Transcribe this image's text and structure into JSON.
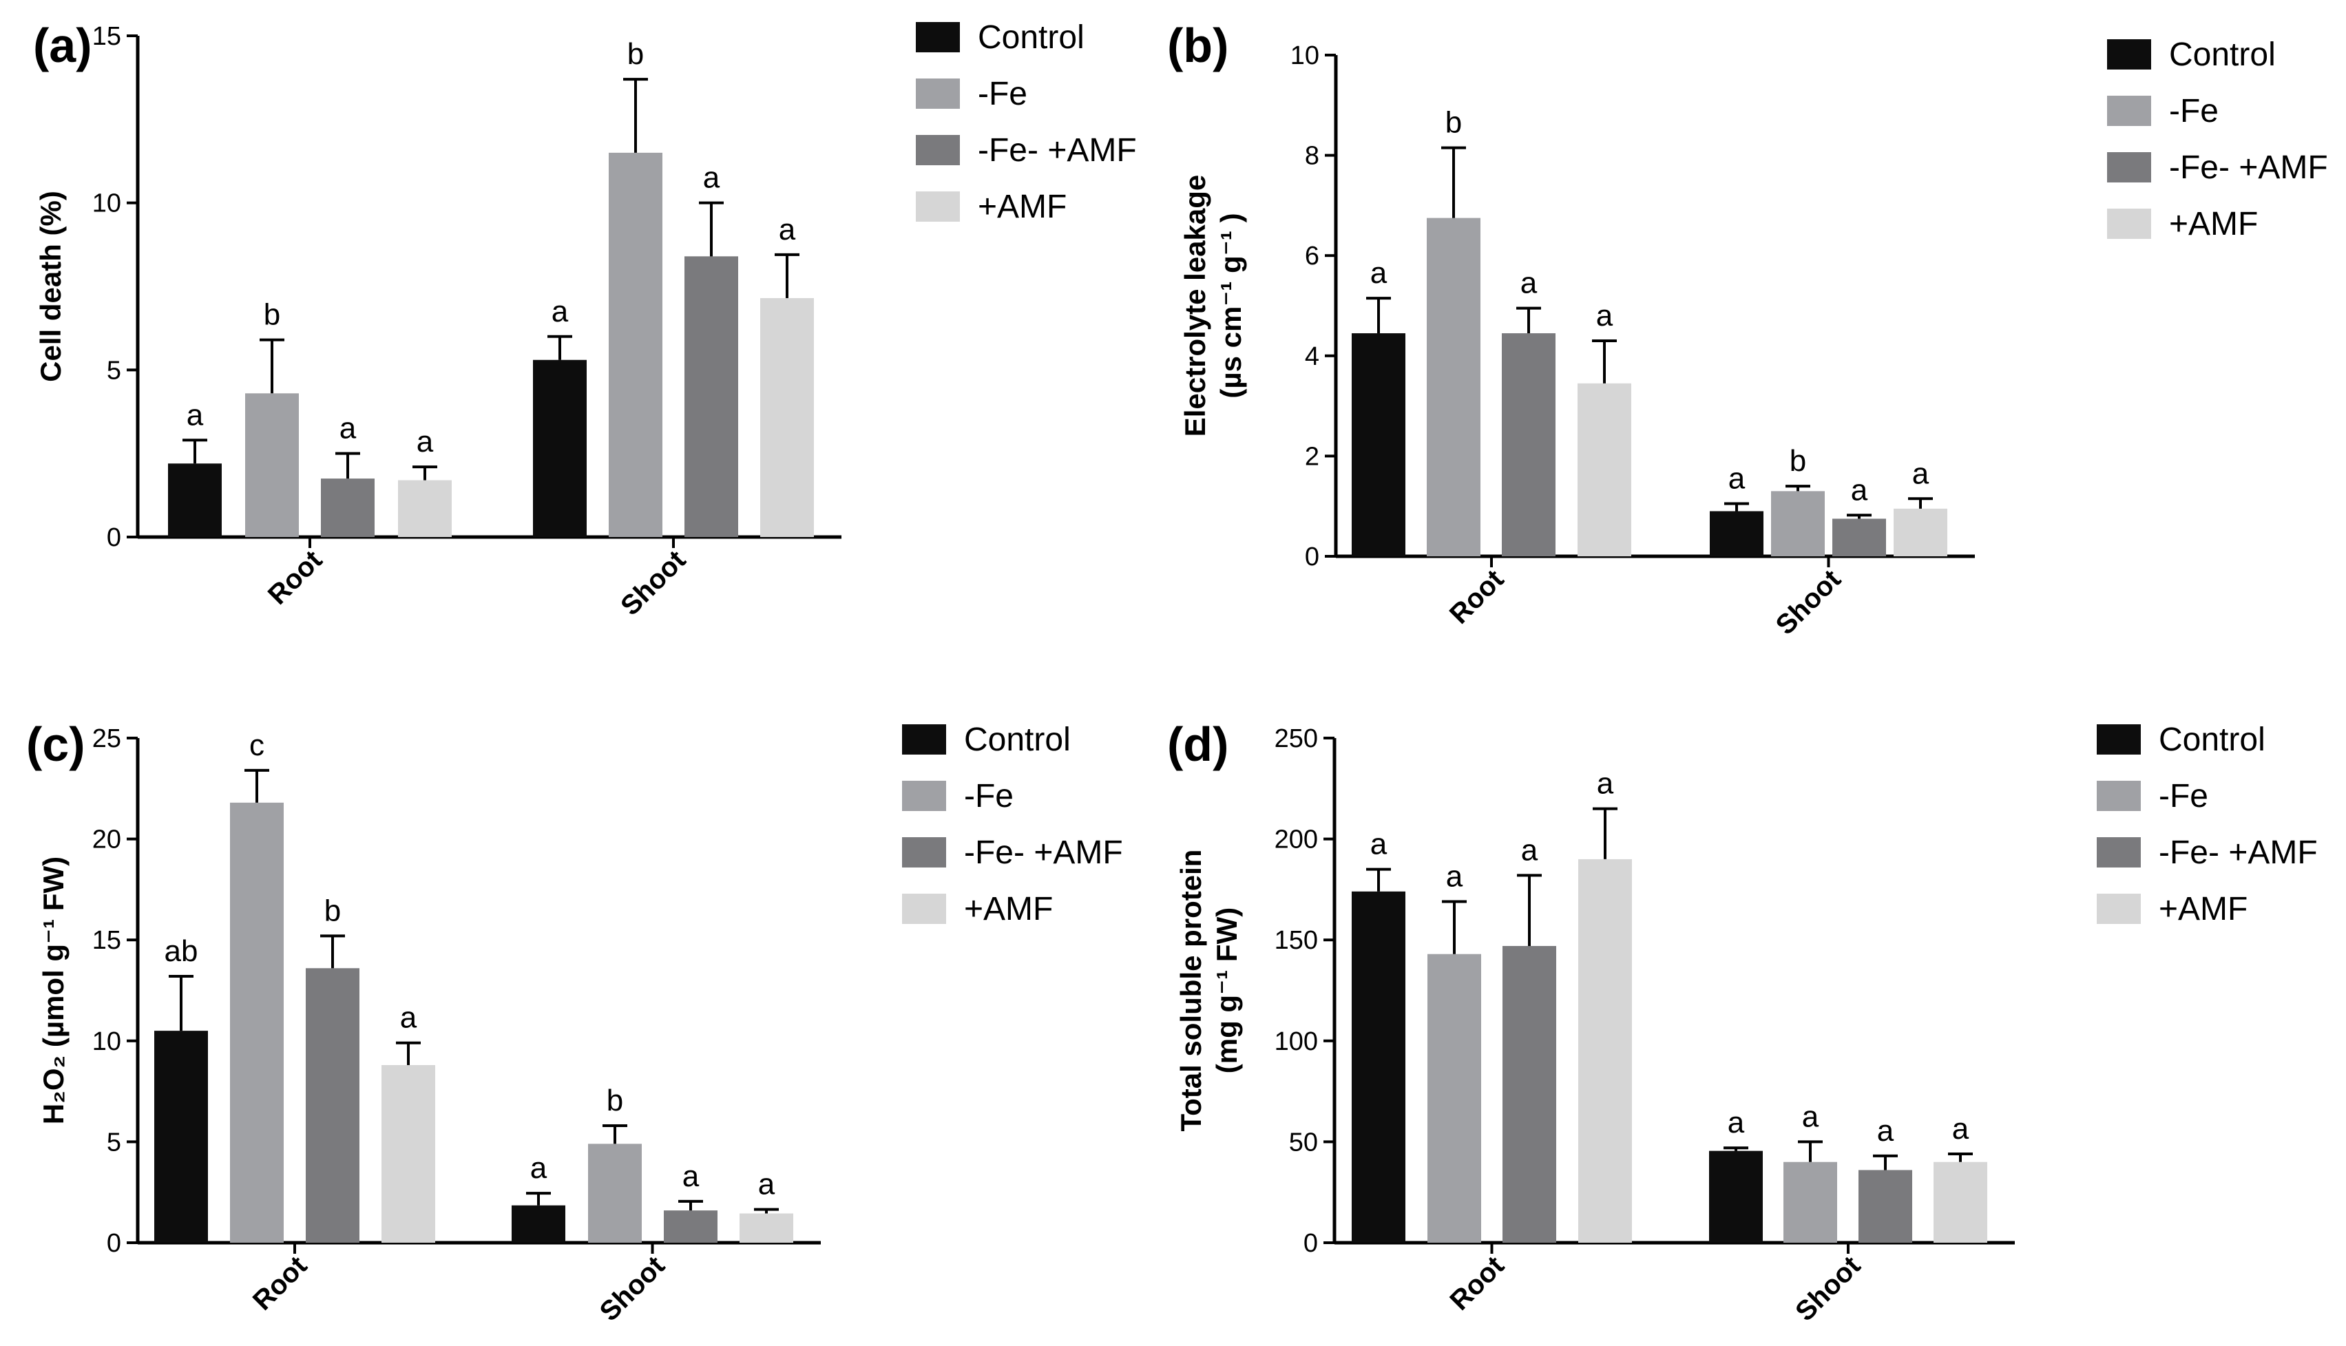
{
  "figure": {
    "colors": {
      "Control": "#0d0d0d",
      "-Fe": "#a0a1a5",
      "-Fe- +AMF": "#7a7a7d",
      "+AMF": "#d6d6d6"
    }
  },
  "chart_data": [
    {
      "type": "bar",
      "panel_label": "(a)",
      "title": "",
      "xlabel": "",
      "ylabel": "Cell death (%)",
      "ylim": [
        0,
        15
      ],
      "yticks": [
        0,
        5,
        10,
        15
      ],
      "categories": [
        "Root",
        "Shoot"
      ],
      "legend": [
        "Control",
        "-Fe",
        "-Fe- +AMF",
        "+AMF"
      ],
      "legend_position": "right",
      "series": [
        {
          "name": "Control",
          "values": [
            2.2,
            5.3
          ],
          "errors": [
            0.7,
            0.7
          ],
          "letters": [
            "a",
            "a"
          ]
        },
        {
          "name": "-Fe",
          "values": [
            4.3,
            11.5
          ],
          "errors": [
            1.6,
            2.2
          ],
          "letters": [
            "b",
            "b"
          ]
        },
        {
          "name": "-Fe- +AMF",
          "values": [
            1.75,
            8.4
          ],
          "errors": [
            0.75,
            1.6
          ],
          "letters": [
            "a",
            "a"
          ]
        },
        {
          "name": "+AMF",
          "values": [
            1.7,
            7.15
          ],
          "errors": [
            0.4,
            1.3
          ],
          "letters": [
            "a",
            "a"
          ]
        }
      ]
    },
    {
      "type": "bar",
      "panel_label": "(b)",
      "title": "",
      "xlabel": "",
      "ylabel": "Electrolyte leakage",
      "ylabel2": "(µs cm⁻¹ g⁻¹ )",
      "ylim": [
        0,
        10
      ],
      "yticks": [
        0,
        2,
        4,
        6,
        8,
        10
      ],
      "categories": [
        "Root",
        "Shoot"
      ],
      "legend": [
        "Control",
        "-Fe",
        "-Fe- +AMF",
        "+AMF"
      ],
      "legend_position": "right",
      "series": [
        {
          "name": "Control",
          "values": [
            4.45,
            0.9
          ],
          "errors": [
            0.7,
            0.15
          ],
          "letters": [
            "a",
            "a"
          ]
        },
        {
          "name": "-Fe",
          "values": [
            6.75,
            1.3
          ],
          "errors": [
            1.4,
            0.1
          ],
          "letters": [
            "b",
            "b"
          ]
        },
        {
          "name": "-Fe- +AMF",
          "values": [
            4.45,
            0.75
          ],
          "errors": [
            0.5,
            0.07
          ],
          "letters": [
            "a",
            "a"
          ]
        },
        {
          "name": "+AMF",
          "values": [
            3.45,
            0.95
          ],
          "errors": [
            0.85,
            0.2
          ],
          "letters": [
            "a",
            "a"
          ]
        }
      ]
    },
    {
      "type": "bar",
      "panel_label": "(c)",
      "title": "",
      "xlabel": "",
      "ylabel": "H₂O₂ (µmol g⁻¹ FW)",
      "ylim": [
        0,
        25
      ],
      "yticks": [
        0,
        5,
        10,
        15,
        20,
        25
      ],
      "categories": [
        "Root",
        "Shoot"
      ],
      "legend": [
        "Control",
        "-Fe",
        "-Fe- +AMF",
        "+AMF"
      ],
      "legend_position": "right",
      "series": [
        {
          "name": "Control",
          "values": [
            10.5,
            1.85
          ],
          "errors": [
            2.7,
            0.6
          ],
          "letters": [
            "ab",
            "a"
          ]
        },
        {
          "name": "-Fe",
          "values": [
            21.8,
            4.9
          ],
          "errors": [
            1.6,
            0.9
          ],
          "letters": [
            "c",
            "b"
          ]
        },
        {
          "name": "-Fe- +AMF",
          "values": [
            13.6,
            1.6
          ],
          "errors": [
            1.6,
            0.45
          ],
          "letters": [
            "b",
            "a"
          ]
        },
        {
          "name": "+AMF",
          "values": [
            8.8,
            1.45
          ],
          "errors": [
            1.1,
            0.2
          ],
          "letters": [
            "a",
            "a"
          ]
        }
      ]
    },
    {
      "type": "bar",
      "panel_label": "(d)",
      "title": "",
      "xlabel": "",
      "ylabel": "Total soluble protein",
      "ylabel2": "(mg g⁻¹ FW)",
      "ylim": [
        0,
        250
      ],
      "yticks": [
        0,
        50,
        100,
        150,
        200,
        250
      ],
      "categories": [
        "Root",
        "Shoot"
      ],
      "legend": [
        "Control",
        "-Fe",
        "-Fe- +AMF",
        "+AMF"
      ],
      "legend_position": "right",
      "series": [
        {
          "name": "Control",
          "values": [
            174,
            45.5
          ],
          "errors": [
            11,
            1.5
          ],
          "letters": [
            "a",
            "a"
          ]
        },
        {
          "name": "-Fe",
          "values": [
            143,
            40
          ],
          "errors": [
            26,
            10
          ],
          "letters": [
            "a",
            "a"
          ]
        },
        {
          "name": "-Fe- +AMF",
          "values": [
            147,
            36
          ],
          "errors": [
            35,
            7
          ],
          "letters": [
            "a",
            "a"
          ]
        },
        {
          "name": "+AMF",
          "values": [
            190,
            40
          ],
          "errors": [
            25,
            4
          ],
          "letters": [
            "a",
            "a"
          ]
        }
      ]
    }
  ]
}
